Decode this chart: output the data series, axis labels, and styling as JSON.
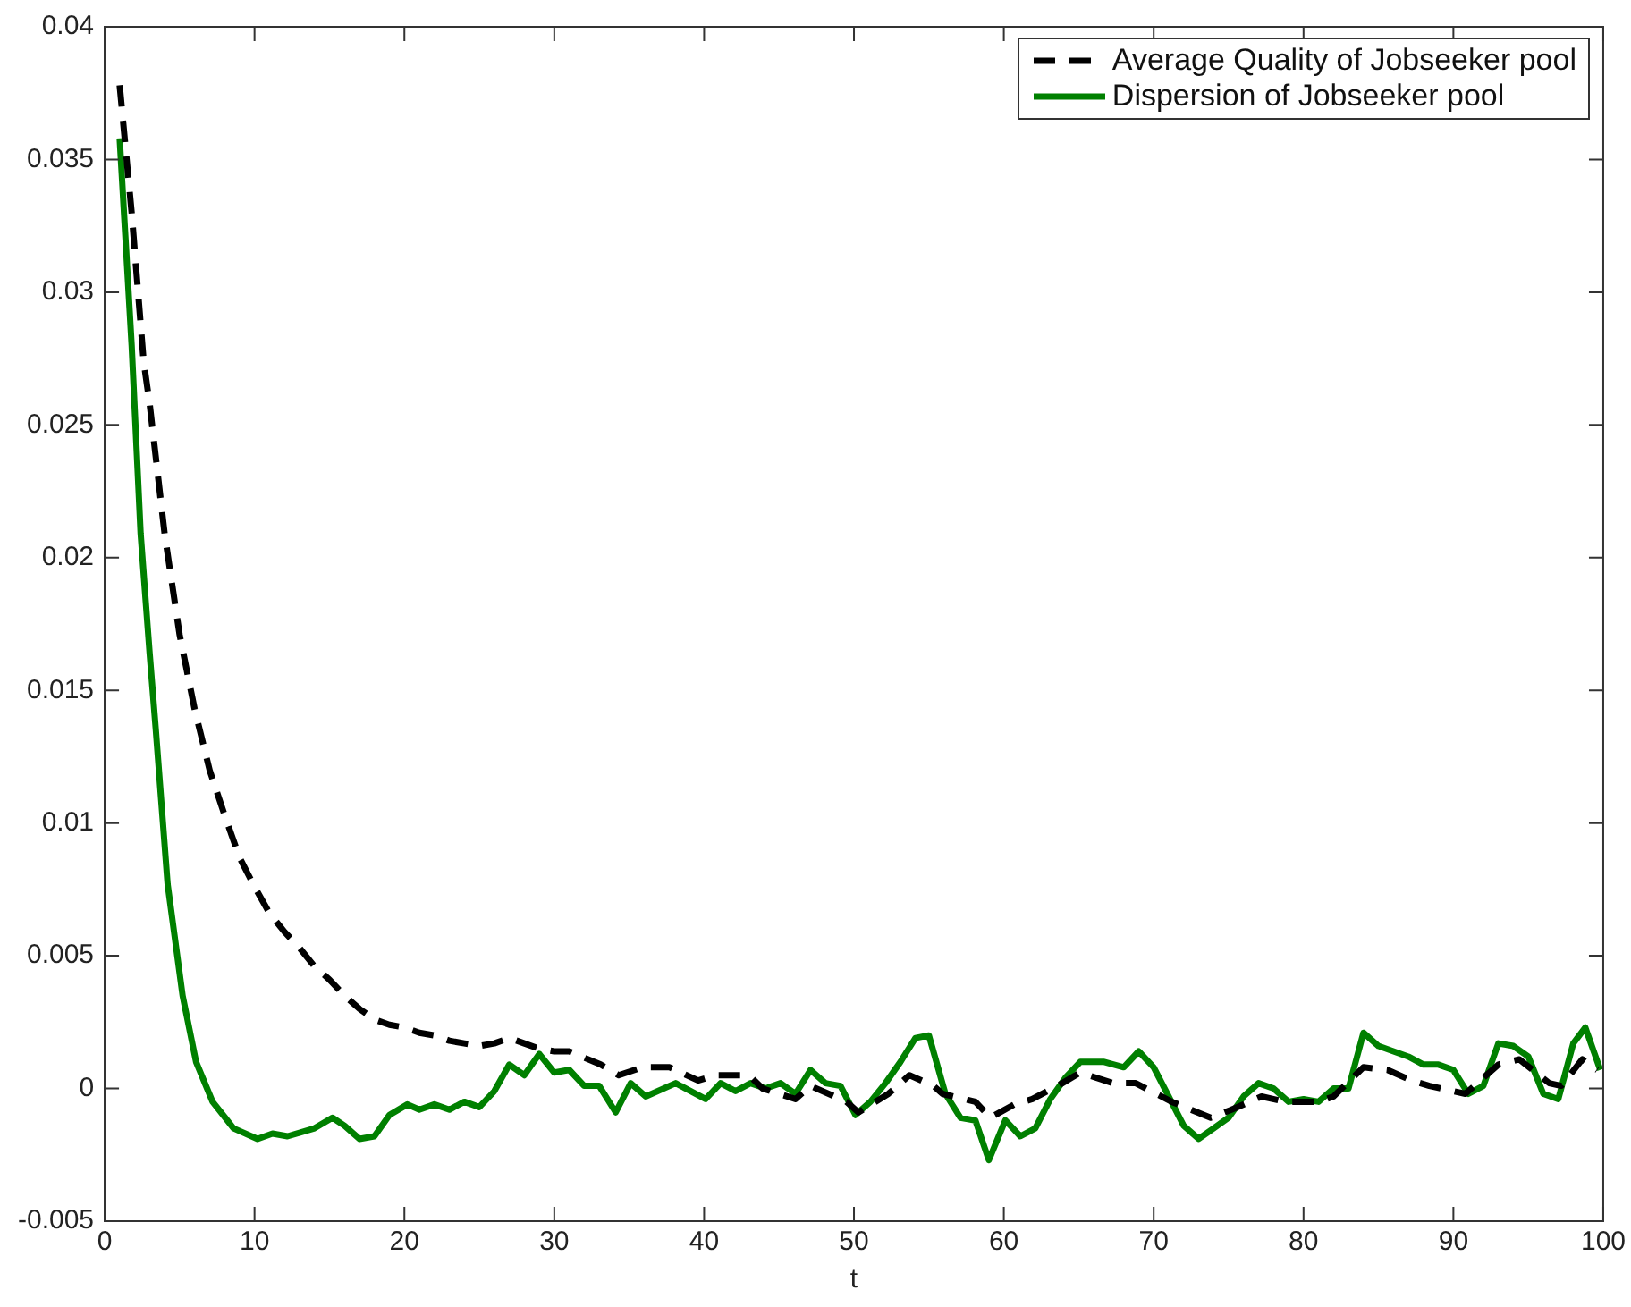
{
  "chart_data": {
    "type": "line",
    "xlabel": "t",
    "xlim": [
      0,
      100
    ],
    "xticks": [
      0,
      10,
      20,
      30,
      40,
      50,
      60,
      70,
      80,
      90,
      100
    ],
    "ylim": [
      -0.005,
      0.04
    ],
    "yticks": [
      -0.005,
      0,
      0.005,
      0.01,
      0.015,
      0.02,
      0.025,
      0.03,
      0.035,
      0.04
    ],
    "grid": false,
    "legend": "top right",
    "marker": "none",
    "series": [
      {
        "name": "Average Quality of Jobseeker pool",
        "color": "#000000",
        "line_style": "dashed",
        "x": [
          1,
          1.8,
          2.6,
          3,
          4,
          5,
          6,
          7,
          8,
          9,
          10,
          11,
          12,
          13,
          14,
          15,
          16,
          17,
          18,
          19,
          20,
          21,
          22,
          23,
          24,
          25,
          26,
          27,
          28,
          29,
          30,
          31,
          33.1,
          34.3,
          35.9,
          37.7,
          39.6,
          40.8,
          43,
          43.9,
          46.1,
          47.1,
          49.5,
          50.3,
          52.3,
          53.7,
          55.3,
          55.9,
          58.1,
          59.1,
          60.7,
          61.9,
          63.9,
          65.1,
          67.3,
          68.8,
          71.2,
          73.8,
          75.2,
          77.2,
          78.8,
          81,
          82,
          84,
          85.6,
          87.2,
          88.4,
          90.8,
          93,
          94.4,
          96.4,
          97.2,
          98.6,
          99.6
        ],
        "values": [
          0.0378,
          0.033,
          0.0274,
          0.0258,
          0.0209,
          0.0171,
          0.0143,
          0.012,
          0.0103,
          0.0087,
          0.0076,
          0.0066,
          0.0059,
          0.0053,
          0.0046,
          0.0041,
          0.0035,
          0.003,
          0.0026,
          0.0024,
          0.0023,
          0.0021,
          0.002,
          0.0018,
          0.0017,
          0.0016,
          0.0017,
          0.0019,
          0.0017,
          0.0015,
          0.0014,
          0.0014,
          0.0009,
          0.0005,
          0.0008,
          0.0008,
          0.0003,
          0.0005,
          0.0005,
          0,
          -0.0004,
          0.0001,
          -0.0005,
          -0.0009,
          -0.0002,
          0.0005,
          0.0001,
          -0.0002,
          -0.0005,
          -0.0011,
          -0.0006,
          -0.0004,
          0.0002,
          0.0006,
          0.0002,
          0.0002,
          -0.0005,
          -0.0011,
          -0.0008,
          -0.0003,
          -0.0005,
          -0.0005,
          -0.0003,
          0.0008,
          0.0007,
          0.0003,
          0.0001,
          -0.0002,
          0.0009,
          0.0011,
          0.0002,
          0.0001,
          0.0011,
          0.0007
        ]
      },
      {
        "name": "Dispersion of Jobseeker pool",
        "color": "#008000",
        "line_style": "solid",
        "x": [
          1,
          1.8,
          2.4,
          3,
          3.4,
          4.2,
          5.2,
          6.1,
          7.2,
          8.6,
          10.2,
          11.2,
          12.2,
          14,
          15.2,
          16,
          17,
          18,
          19,
          20.2,
          21,
          22,
          23,
          24,
          25,
          26,
          27,
          28,
          29,
          30,
          31,
          32,
          33,
          34.1,
          35.1,
          36.1,
          38.1,
          40.1,
          41.1,
          42.1,
          43.1,
          44.1,
          45.1,
          46.1,
          47.1,
          48.1,
          49.1,
          50.1,
          51.1,
          52.1,
          53.1,
          54.1,
          55,
          56.1,
          57.1,
          58.1,
          59,
          60.1,
          61.1,
          62.1,
          63.1,
          64.1,
          65.1,
          66.7,
          68,
          69,
          70,
          71,
          72,
          73,
          74,
          75,
          76,
          77,
          78,
          79,
          80,
          81,
          82,
          83,
          84,
          85,
          86,
          87,
          88,
          89,
          90,
          91,
          92,
          93,
          94,
          95,
          96,
          97,
          98,
          98.8,
          99.8
        ],
        "values": [
          0.0358,
          0.028,
          0.0209,
          0.0164,
          0.0136,
          0.0077,
          0.0035,
          0.001,
          -0.0005,
          -0.0015,
          -0.0019,
          -0.0017,
          -0.0018,
          -0.0015,
          -0.0011,
          -0.0014,
          -0.0019,
          -0.0018,
          -0.001,
          -0.0006,
          -0.0008,
          -0.0006,
          -0.0008,
          -0.0005,
          -0.0007,
          -0.0001,
          0.0009,
          0.0005,
          0.0013,
          0.0006,
          0.0007,
          0.0001,
          0.0001,
          -0.0009,
          0.0002,
          -0.0003,
          0.0002,
          -0.0004,
          0.0002,
          -0.0001,
          0.0002,
          0,
          0.0002,
          -0.0002,
          0.0007,
          0.0002,
          0.0001,
          -0.001,
          -0.0005,
          0.0002,
          0.001,
          0.0019,
          0.002,
          -0.0002,
          -0.0011,
          -0.0012,
          -0.0027,
          -0.0012,
          -0.0018,
          -0.0015,
          -0.0004,
          0.0004,
          0.001,
          0.001,
          0.0008,
          0.0014,
          0.0008,
          -0.0003,
          -0.0014,
          -0.0019,
          -0.0015,
          -0.0011,
          -0.0003,
          0.0002,
          0,
          -0.0005,
          -0.0004,
          -0.0005,
          0,
          0,
          0.0021,
          0.0016,
          0.0014,
          0.0012,
          0.0009,
          0.0009,
          0.0007,
          -0.0002,
          0.0001,
          0.0017,
          0.0016,
          0.0012,
          -0.0002,
          -0.0004,
          0.0017,
          0.0023,
          0.0007
        ]
      }
    ]
  }
}
